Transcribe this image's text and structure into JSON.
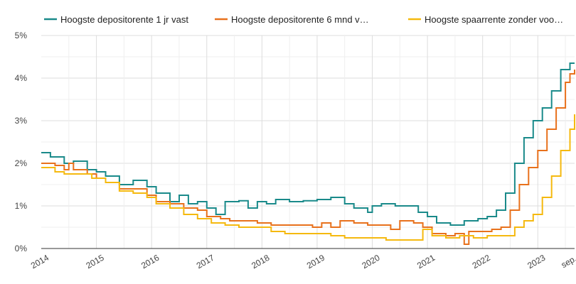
{
  "chart_data": {
    "type": "line",
    "x_axis": {
      "ticks": [
        "2014",
        "2015",
        "2016",
        "2017",
        "2018",
        "2019",
        "2020",
        "2021",
        "2022",
        "2023",
        "sep."
      ],
      "range": [
        "2014-01",
        "2023-09"
      ]
    },
    "y_axis": {
      "ticks": [
        "0%",
        "1%",
        "2%",
        "3%",
        "4%",
        "5%"
      ],
      "ylim": [
        0,
        5
      ],
      "unit": "%"
    },
    "grid": true,
    "legend_position": "top",
    "series": [
      {
        "name": "Hoogste depositorente 1 jr vast",
        "color": "#1a8a8a",
        "points": [
          [
            "2014-01",
            2.25
          ],
          [
            "2014-03",
            2.15
          ],
          [
            "2014-06",
            2.0
          ],
          [
            "2014-08",
            2.05
          ],
          [
            "2014-11",
            1.85
          ],
          [
            "2015-01",
            1.8
          ],
          [
            "2015-03",
            1.7
          ],
          [
            "2015-06",
            1.5
          ],
          [
            "2015-09",
            1.6
          ],
          [
            "2015-12",
            1.45
          ],
          [
            "2016-02",
            1.3
          ],
          [
            "2016-05",
            1.1
          ],
          [
            "2016-07",
            1.25
          ],
          [
            "2016-09",
            1.05
          ],
          [
            "2016-11",
            1.1
          ],
          [
            "2017-01",
            0.95
          ],
          [
            "2017-03",
            0.8
          ],
          [
            "2017-05",
            1.1
          ],
          [
            "2017-08",
            1.12
          ],
          [
            "2017-10",
            0.95
          ],
          [
            "2017-12",
            1.1
          ],
          [
            "2018-02",
            1.05
          ],
          [
            "2018-04",
            1.15
          ],
          [
            "2018-07",
            1.1
          ],
          [
            "2018-10",
            1.12
          ],
          [
            "2019-01",
            1.15
          ],
          [
            "2019-04",
            1.2
          ],
          [
            "2019-07",
            1.05
          ],
          [
            "2019-09",
            0.95
          ],
          [
            "2019-12",
            0.85
          ],
          [
            "2020-01",
            1.0
          ],
          [
            "2020-03",
            1.05
          ],
          [
            "2020-06",
            1.0
          ],
          [
            "2020-09",
            1.0
          ],
          [
            "2020-11",
            0.85
          ],
          [
            "2021-01",
            0.75
          ],
          [
            "2021-03",
            0.6
          ],
          [
            "2021-06",
            0.55
          ],
          [
            "2021-09",
            0.65
          ],
          [
            "2021-12",
            0.7
          ],
          [
            "2022-02",
            0.75
          ],
          [
            "2022-04",
            0.9
          ],
          [
            "2022-06",
            1.3
          ],
          [
            "2022-08",
            2.0
          ],
          [
            "2022-10",
            2.6
          ],
          [
            "2022-12",
            3.0
          ],
          [
            "2023-02",
            3.3
          ],
          [
            "2023-04",
            3.7
          ],
          [
            "2023-06",
            4.2
          ],
          [
            "2023-08",
            4.35
          ],
          [
            "2023-09",
            4.35
          ]
        ]
      },
      {
        "name": "Hoogste depositorente 6 mnd v…",
        "color": "#e8711c",
        "points": [
          [
            "2014-01",
            2.0
          ],
          [
            "2014-04",
            1.95
          ],
          [
            "2014-06",
            1.85
          ],
          [
            "2014-07",
            2.0
          ],
          [
            "2014-08",
            1.85
          ],
          [
            "2014-11",
            1.75
          ],
          [
            "2015-01",
            1.65
          ],
          [
            "2015-03",
            1.55
          ],
          [
            "2015-06",
            1.4
          ],
          [
            "2015-09",
            1.4
          ],
          [
            "2015-12",
            1.25
          ],
          [
            "2016-02",
            1.1
          ],
          [
            "2016-05",
            1.05
          ],
          [
            "2016-08",
            0.95
          ],
          [
            "2016-11",
            0.9
          ],
          [
            "2017-01",
            0.75
          ],
          [
            "2017-04",
            0.7
          ],
          [
            "2017-06",
            0.65
          ],
          [
            "2017-10",
            0.65
          ],
          [
            "2017-12",
            0.6
          ],
          [
            "2018-03",
            0.55
          ],
          [
            "2018-06",
            0.55
          ],
          [
            "2018-09",
            0.55
          ],
          [
            "2018-12",
            0.5
          ],
          [
            "2019-02",
            0.6
          ],
          [
            "2019-04",
            0.5
          ],
          [
            "2019-06",
            0.65
          ],
          [
            "2019-09",
            0.6
          ],
          [
            "2019-12",
            0.55
          ],
          [
            "2020-03",
            0.55
          ],
          [
            "2020-05",
            0.45
          ],
          [
            "2020-07",
            0.65
          ],
          [
            "2020-10",
            0.6
          ],
          [
            "2020-12",
            0.5
          ],
          [
            "2021-02",
            0.35
          ],
          [
            "2021-05",
            0.3
          ],
          [
            "2021-07",
            0.35
          ],
          [
            "2021-09",
            0.1
          ],
          [
            "2021-10",
            0.4
          ],
          [
            "2022-01",
            0.4
          ],
          [
            "2022-03",
            0.45
          ],
          [
            "2022-05",
            0.5
          ],
          [
            "2022-07",
            0.9
          ],
          [
            "2022-09",
            1.5
          ],
          [
            "2022-11",
            1.9
          ],
          [
            "2023-01",
            2.3
          ],
          [
            "2023-03",
            2.8
          ],
          [
            "2023-05",
            3.3
          ],
          [
            "2023-07",
            3.9
          ],
          [
            "2023-08",
            4.1
          ],
          [
            "2023-09",
            4.2
          ]
        ]
      },
      {
        "name": "Hoogste spaarrente zonder voo…",
        "color": "#f5b90f",
        "points": [
          [
            "2014-01",
            1.9
          ],
          [
            "2014-04",
            1.8
          ],
          [
            "2014-06",
            1.75
          ],
          [
            "2014-09",
            1.75
          ],
          [
            "2014-12",
            1.65
          ],
          [
            "2015-03",
            1.55
          ],
          [
            "2015-06",
            1.35
          ],
          [
            "2015-09",
            1.3
          ],
          [
            "2015-12",
            1.2
          ],
          [
            "2016-02",
            1.05
          ],
          [
            "2016-05",
            0.95
          ],
          [
            "2016-08",
            0.8
          ],
          [
            "2016-11",
            0.7
          ],
          [
            "2017-02",
            0.6
          ],
          [
            "2017-05",
            0.55
          ],
          [
            "2017-08",
            0.5
          ],
          [
            "2017-12",
            0.5
          ],
          [
            "2018-03",
            0.4
          ],
          [
            "2018-06",
            0.35
          ],
          [
            "2018-10",
            0.35
          ],
          [
            "2019-01",
            0.35
          ],
          [
            "2019-04",
            0.3
          ],
          [
            "2019-07",
            0.25
          ],
          [
            "2019-10",
            0.25
          ],
          [
            "2020-01",
            0.25
          ],
          [
            "2020-04",
            0.2
          ],
          [
            "2020-07",
            0.2
          ],
          [
            "2020-10",
            0.2
          ],
          [
            "2020-12",
            0.45
          ],
          [
            "2021-02",
            0.3
          ],
          [
            "2021-05",
            0.25
          ],
          [
            "2021-08",
            0.3
          ],
          [
            "2021-11",
            0.25
          ],
          [
            "2022-02",
            0.3
          ],
          [
            "2022-05",
            0.3
          ],
          [
            "2022-08",
            0.5
          ],
          [
            "2022-10",
            0.65
          ],
          [
            "2022-12",
            0.8
          ],
          [
            "2023-02",
            1.2
          ],
          [
            "2023-04",
            1.7
          ],
          [
            "2023-06",
            2.3
          ],
          [
            "2023-08",
            2.8
          ],
          [
            "2023-09",
            3.15
          ]
        ]
      }
    ]
  }
}
